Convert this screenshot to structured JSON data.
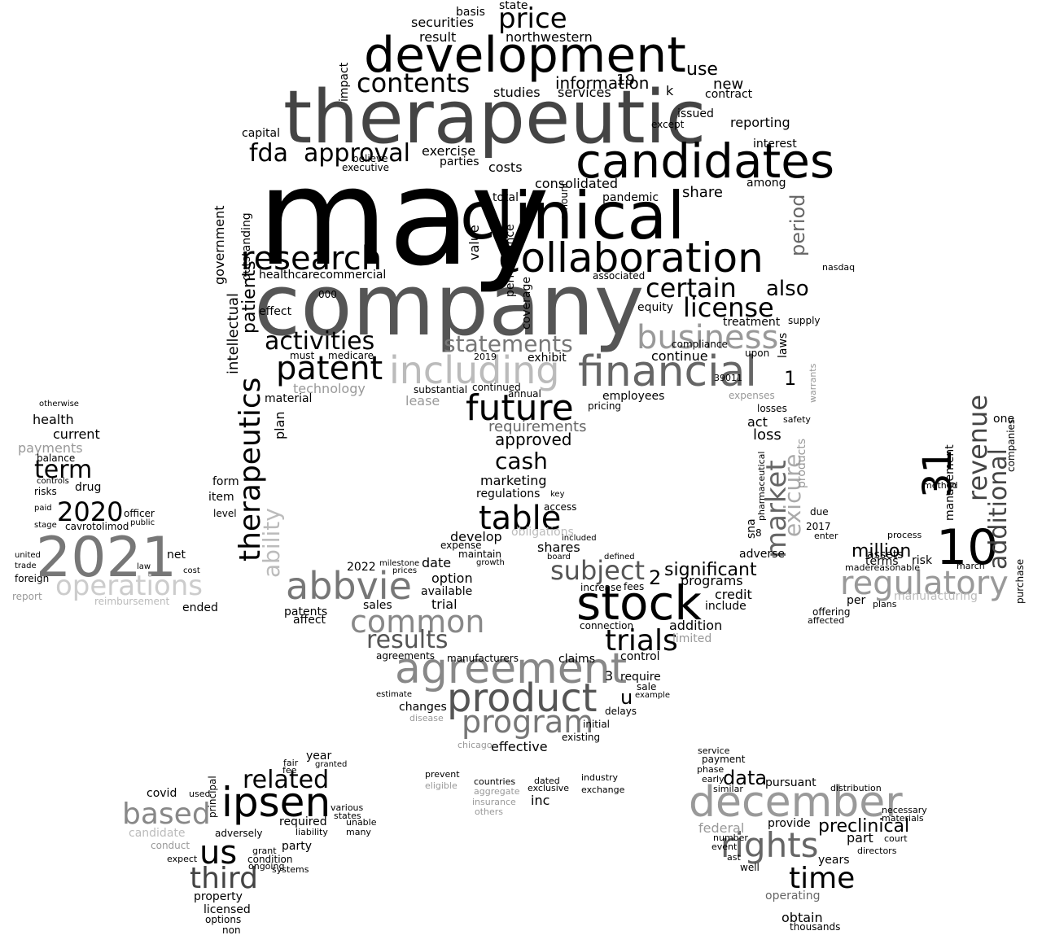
{
  "words": [
    {
      "text": "may",
      "tone": "#000000"
    },
    {
      "text": "company",
      "tone": "#555555"
    },
    {
      "text": "therapeutic",
      "tone": "#444444"
    },
    {
      "text": "clinical",
      "tone": "#000000"
    },
    {
      "text": "development",
      "tone": "#000000"
    },
    {
      "text": "candidates",
      "tone": "#000000"
    },
    {
      "text": "collaboration",
      "tone": "#000000"
    },
    {
      "text": "agreement",
      "tone": "#888888"
    },
    {
      "text": "stock",
      "tone": "#000000"
    },
    {
      "text": "product",
      "tone": "#555555"
    },
    {
      "text": "financial",
      "tone": "#666666"
    },
    {
      "text": "including",
      "tone": "#bbbbbb"
    },
    {
      "text": "december",
      "tone": "#999999"
    },
    {
      "text": "2021",
      "tone": "#777777"
    },
    {
      "text": "ipsen",
      "tone": "#000000"
    },
    {
      "text": "abbvie",
      "tone": "#777777"
    },
    {
      "text": "10",
      "tone": "#000000"
    },
    {
      "text": "31",
      "tone": "#000000"
    },
    {
      "text": "regulatory",
      "tone": "#999999"
    },
    {
      "text": "research",
      "tone": "#000000"
    },
    {
      "text": "patent",
      "tone": "#000000"
    },
    {
      "text": "business",
      "tone": "#999999"
    },
    {
      "text": "therapeutics",
      "tone": "#000000"
    },
    {
      "text": "program",
      "tone": "#777777"
    },
    {
      "text": "common",
      "tone": "#888888"
    },
    {
      "text": "future",
      "tone": "#000000"
    },
    {
      "text": "rights",
      "tone": "#666666"
    },
    {
      "text": "time",
      "tone": "#000000"
    },
    {
      "text": "table",
      "tone": "#000000"
    },
    {
      "text": "trials",
      "tone": "#000000"
    },
    {
      "text": "third",
      "tone": "#444444"
    },
    {
      "text": "based",
      "tone": "#888888"
    },
    {
      "text": "us",
      "tone": "#000000"
    },
    {
      "text": "subject",
      "tone": "#555555"
    },
    {
      "text": "price",
      "tone": "#000000"
    },
    {
      "text": "contents",
      "tone": "#000000"
    },
    {
      "text": "approval",
      "tone": "#000000"
    },
    {
      "text": "fda",
      "tone": "#000000"
    },
    {
      "text": "certain",
      "tone": "#000000"
    },
    {
      "text": "license",
      "tone": "#000000"
    },
    {
      "text": "statements",
      "tone": "#777777"
    },
    {
      "text": "activities",
      "tone": "#000000"
    },
    {
      "text": "results",
      "tone": "#555555"
    },
    {
      "text": "operations",
      "tone": "#cccccc"
    },
    {
      "text": "market",
      "tone": "#666666"
    },
    {
      "text": "revenue",
      "tone": "#444444"
    },
    {
      "text": "additional",
      "tone": "#444444"
    },
    {
      "text": "cash",
      "tone": "#000000"
    },
    {
      "text": "term",
      "tone": "#000000"
    },
    {
      "text": "2020",
      "tone": "#000000"
    },
    {
      "text": "related",
      "tone": "#000000"
    },
    {
      "text": "also",
      "tone": "#000000"
    },
    {
      "text": "information",
      "tone": "#000000"
    },
    {
      "text": "data",
      "tone": "#000000"
    },
    {
      "text": "million",
      "tone": "#000000"
    },
    {
      "text": "exicure",
      "tone": "#aaaaaa"
    },
    {
      "text": "ability",
      "tone": "#bbbbbb"
    },
    {
      "text": "period",
      "tone": "#666666"
    },
    {
      "text": "preclinical",
      "tone": "#000000"
    },
    {
      "text": "significant",
      "tone": "#000000"
    },
    {
      "text": "requirements",
      "tone": "#666666"
    },
    {
      "text": "approved",
      "tone": "#000000"
    },
    {
      "text": "use",
      "tone": "#000000"
    },
    {
      "text": "securities",
      "tone": "#000000"
    },
    {
      "text": "northwestern",
      "tone": "#000000"
    },
    {
      "text": "services",
      "tone": "#000000"
    },
    {
      "text": "new",
      "tone": "#000000"
    },
    {
      "text": "consolidated",
      "tone": "#000000"
    },
    {
      "text": "share",
      "tone": "#000000"
    },
    {
      "text": "exercise",
      "tone": "#000000"
    },
    {
      "text": "studies",
      "tone": "#000000"
    },
    {
      "text": "reporting",
      "tone": "#000000"
    },
    {
      "text": "patients",
      "tone": "#000000"
    },
    {
      "text": "government",
      "tone": "#000000"
    },
    {
      "text": "intellectual",
      "tone": "#000000"
    },
    {
      "text": "technology",
      "tone": "#999999"
    },
    {
      "text": "healthcarecommercial",
      "tone": "#000000"
    },
    {
      "text": "continue",
      "tone": "#000000"
    },
    {
      "text": "marketing",
      "tone": "#000000"
    },
    {
      "text": "regulations",
      "tone": "#000000"
    },
    {
      "text": "shares",
      "tone": "#000000"
    },
    {
      "text": "develop",
      "tone": "#000000"
    },
    {
      "text": "date",
      "tone": "#000000"
    },
    {
      "text": "option",
      "tone": "#000000"
    },
    {
      "text": "available",
      "tone": "#000000"
    },
    {
      "text": "trial",
      "tone": "#000000"
    },
    {
      "text": "sales",
      "tone": "#000000"
    },
    {
      "text": "patents",
      "tone": "#000000"
    },
    {
      "text": "affect",
      "tone": "#000000"
    },
    {
      "text": "programs",
      "tone": "#000000"
    },
    {
      "text": "credit",
      "tone": "#000000"
    },
    {
      "text": "include",
      "tone": "#000000"
    },
    {
      "text": "addition",
      "tone": "#000000"
    },
    {
      "text": "limited",
      "tone": "#999999"
    },
    {
      "text": "connection",
      "tone": "#000000"
    },
    {
      "text": "control",
      "tone": "#000000"
    },
    {
      "text": "require",
      "tone": "#000000"
    },
    {
      "text": "claims",
      "tone": "#000000"
    },
    {
      "text": "agreements",
      "tone": "#000000"
    },
    {
      "text": "manufacturers",
      "tone": "#000000"
    },
    {
      "text": "effective",
      "tone": "#000000"
    },
    {
      "text": "changes",
      "tone": "#000000"
    },
    {
      "text": "delays",
      "tone": "#000000"
    },
    {
      "text": "health",
      "tone": "#000000"
    },
    {
      "text": "current",
      "tone": "#000000"
    },
    {
      "text": "payments",
      "tone": "#999999"
    },
    {
      "text": "balance",
      "tone": "#000000"
    },
    {
      "text": "drug",
      "tone": "#000000"
    },
    {
      "text": "cavrotolimod",
      "tone": "#000000"
    },
    {
      "text": "net",
      "tone": "#000000"
    },
    {
      "text": "officer",
      "tone": "#000000"
    },
    {
      "text": "public",
      "tone": "#000000"
    },
    {
      "text": "reimbursement",
      "tone": "#bbbbbb"
    },
    {
      "text": "ended",
      "tone": "#000000"
    },
    {
      "text": "year",
      "tone": "#000000"
    },
    {
      "text": "covid",
      "tone": "#000000"
    },
    {
      "text": "candidate",
      "tone": "#bbbbbb"
    },
    {
      "text": "conduct",
      "tone": "#999999"
    },
    {
      "text": "adversely",
      "tone": "#000000"
    },
    {
      "text": "required",
      "tone": "#000000"
    },
    {
      "text": "party",
      "tone": "#000000"
    },
    {
      "text": "condition",
      "tone": "#000000"
    },
    {
      "text": "property",
      "tone": "#000000"
    },
    {
      "text": "licensed",
      "tone": "#000000"
    },
    {
      "text": "options",
      "tone": "#000000"
    },
    {
      "text": "payment",
      "tone": "#000000"
    },
    {
      "text": "pursuant",
      "tone": "#000000"
    },
    {
      "text": "federal",
      "tone": "#999999"
    },
    {
      "text": "provide",
      "tone": "#000000"
    },
    {
      "text": "part",
      "tone": "#000000"
    },
    {
      "text": "years",
      "tone": "#000000"
    },
    {
      "text": "operating",
      "tone": "#666666"
    },
    {
      "text": "obtain",
      "tone": "#000000"
    },
    {
      "text": "thousands",
      "tone": "#000000"
    },
    {
      "text": "distribution",
      "tone": "#000000"
    },
    {
      "text": "assets",
      "tone": "#000000"
    },
    {
      "text": "terms",
      "tone": "#000000"
    },
    {
      "text": "risk",
      "tone": "#000000"
    },
    {
      "text": "management",
      "tone": "#000000"
    },
    {
      "text": "manufacturing",
      "tone": "#bbbbbb"
    },
    {
      "text": "per",
      "tone": "#000000"
    },
    {
      "text": "process",
      "tone": "#000000"
    },
    {
      "text": "madereasonable",
      "tone": "#000000"
    },
    {
      "text": "march",
      "tone": "#000000"
    },
    {
      "text": "one",
      "tone": "#000000"
    },
    {
      "text": "companies",
      "tone": "#000000"
    },
    {
      "text": "method",
      "tone": "#000000"
    },
    {
      "text": "purchase",
      "tone": "#000000"
    },
    {
      "text": "plans",
      "tone": "#000000"
    },
    {
      "text": "affected",
      "tone": "#000000"
    },
    {
      "text": "offering",
      "tone": "#000000"
    },
    {
      "text": "loss",
      "tone": "#000000"
    },
    {
      "text": "act",
      "tone": "#000000"
    },
    {
      "text": "adverse",
      "tone": "#000000"
    },
    {
      "text": "losses",
      "tone": "#000000"
    },
    {
      "text": "safety",
      "tone": "#000000"
    },
    {
      "text": "expenses",
      "tone": "#999999"
    },
    {
      "text": "laws",
      "tone": "#000000"
    },
    {
      "text": "supply",
      "tone": "#000000"
    },
    {
      "text": "treatment",
      "tone": "#000000"
    },
    {
      "text": "upon",
      "tone": "#000000"
    },
    {
      "text": "compliance",
      "tone": "#000000"
    },
    {
      "text": "equity",
      "tone": "#000000"
    },
    {
      "text": "associated",
      "tone": "#000000"
    },
    {
      "text": "nasdaq",
      "tone": "#000000"
    },
    {
      "text": "pandemic",
      "tone": "#000000"
    },
    {
      "text": "interest",
      "tone": "#000000"
    },
    {
      "text": "among",
      "tone": "#000000"
    },
    {
      "text": "issued",
      "tone": "#000000"
    },
    {
      "text": "except",
      "tone": "#000000"
    },
    {
      "text": "contract",
      "tone": "#000000"
    },
    {
      "text": "capital",
      "tone": "#000000"
    },
    {
      "text": "outstanding",
      "tone": "#000000"
    },
    {
      "text": "effect",
      "tone": "#000000"
    },
    {
      "text": "must",
      "tone": "#000000"
    },
    {
      "text": "medicare",
      "tone": "#000000"
    },
    {
      "text": "material",
      "tone": "#000000"
    },
    {
      "text": "plan",
      "tone": "#000000"
    },
    {
      "text": "lease",
      "tone": "#999999"
    },
    {
      "text": "exhibit",
      "tone": "#000000"
    },
    {
      "text": "annual",
      "tone": "#000000"
    },
    {
      "text": "employees",
      "tone": "#000000"
    },
    {
      "text": "pricing",
      "tone": "#000000"
    },
    {
      "text": "continued",
      "tone": "#000000"
    },
    {
      "text": "substantial",
      "tone": "#000000"
    },
    {
      "text": "performance",
      "tone": "#000000"
    },
    {
      "text": "value",
      "tone": "#000000"
    },
    {
      "text": "coverage",
      "tone": "#000000"
    },
    {
      "text": "total",
      "tone": "#000000"
    },
    {
      "text": "amount",
      "tone": "#000000"
    },
    {
      "text": "costs",
      "tone": "#000000"
    },
    {
      "text": "parties",
      "tone": "#000000"
    },
    {
      "text": "result",
      "tone": "#000000"
    },
    {
      "text": "basis",
      "tone": "#000000"
    },
    {
      "text": "state",
      "tone": "#000000"
    },
    {
      "text": "impact",
      "tone": "#000000"
    },
    {
      "text": "believe",
      "tone": "#000000"
    },
    {
      "text": "executive",
      "tone": "#000000"
    },
    {
      "text": "form",
      "tone": "#000000"
    },
    {
      "text": "item",
      "tone": "#000000"
    },
    {
      "text": "level",
      "tone": "#000000"
    },
    {
      "text": "risks",
      "tone": "#000000"
    },
    {
      "text": "paid",
      "tone": "#000000"
    },
    {
      "text": "controls",
      "tone": "#000000"
    },
    {
      "text": "stage",
      "tone": "#000000"
    },
    {
      "text": "foreign",
      "tone": "#000000"
    },
    {
      "text": "united",
      "tone": "#000000"
    },
    {
      "text": "report",
      "tone": "#999999"
    },
    {
      "text": "trade",
      "tone": "#000000"
    },
    {
      "text": "law",
      "tone": "#000000"
    },
    {
      "text": "cost",
      "tone": "#000000"
    },
    {
      "text": "2022",
      "tone": "#000000"
    },
    {
      "text": "milestone",
      "tone": "#000000"
    },
    {
      "text": "prices",
      "tone": "#000000"
    },
    {
      "text": "expense",
      "tone": "#000000"
    },
    {
      "text": "maintain",
      "tone": "#000000"
    },
    {
      "text": "growth",
      "tone": "#000000"
    },
    {
      "text": "obligations",
      "tone": "#bbbbbb"
    },
    {
      "text": "access",
      "tone": "#000000"
    },
    {
      "text": "key",
      "tone": "#000000"
    },
    {
      "text": "board",
      "tone": "#000000"
    },
    {
      "text": "included",
      "tone": "#000000"
    },
    {
      "text": "defined",
      "tone": "#000000"
    },
    {
      "text": "increase",
      "tone": "#000000"
    },
    {
      "text": "fees",
      "tone": "#000000"
    },
    {
      "text": "sale",
      "tone": "#000000"
    },
    {
      "text": "example",
      "tone": "#000000"
    },
    {
      "text": "initial",
      "tone": "#000000"
    },
    {
      "text": "existing",
      "tone": "#000000"
    },
    {
      "text": "estimate",
      "tone": "#000000"
    },
    {
      "text": "disease",
      "tone": "#999999"
    },
    {
      "text": "chicago",
      "tone": "#999999"
    },
    {
      "text": "prevent",
      "tone": "#000000"
    },
    {
      "text": "eligible",
      "tone": "#999999"
    },
    {
      "text": "aggregate",
      "tone": "#999999"
    },
    {
      "text": "insurance",
      "tone": "#999999"
    },
    {
      "text": "others",
      "tone": "#999999"
    },
    {
      "text": "countries",
      "tone": "#000000"
    },
    {
      "text": "exclusive",
      "tone": "#000000"
    },
    {
      "text": "dated",
      "tone": "#000000"
    },
    {
      "text": "inc",
      "tone": "#000000"
    },
    {
      "text": "industry",
      "tone": "#000000"
    },
    {
      "text": "exchange",
      "tone": "#000000"
    },
    {
      "text": "service",
      "tone": "#000000"
    },
    {
      "text": "phase",
      "tone": "#000000"
    },
    {
      "text": "early",
      "tone": "#000000"
    },
    {
      "text": "similar",
      "tone": "#000000"
    },
    {
      "text": "number",
      "tone": "#000000"
    },
    {
      "text": "event",
      "tone": "#000000"
    },
    {
      "text": "well",
      "tone": "#000000"
    },
    {
      "text": "ast",
      "tone": "#000000"
    },
    {
      "text": "directors",
      "tone": "#000000"
    },
    {
      "text": "court",
      "tone": "#000000"
    },
    {
      "text": "necessary",
      "tone": "#000000"
    },
    {
      "text": "materials",
      "tone": "#000000"
    },
    {
      "text": "granted",
      "tone": "#000000"
    },
    {
      "text": "various",
      "tone": "#000000"
    },
    {
      "text": "states",
      "tone": "#000000"
    },
    {
      "text": "unable",
      "tone": "#000000"
    },
    {
      "text": "many",
      "tone": "#000000"
    },
    {
      "text": "liability",
      "tone": "#000000"
    },
    {
      "text": "grant",
      "tone": "#000000"
    },
    {
      "text": "ongoing",
      "tone": "#000000"
    },
    {
      "text": "systems",
      "tone": "#000000"
    },
    {
      "text": "non",
      "tone": "#000000"
    },
    {
      "text": "principal",
      "tone": "#000000"
    },
    {
      "text": "used",
      "tone": "#000000"
    },
    {
      "text": "expect",
      "tone": "#000000"
    },
    {
      "text": "fair",
      "tone": "#000000"
    },
    {
      "text": "fee",
      "tone": "#000000"
    },
    {
      "text": "otherwise",
      "tone": "#000000"
    },
    {
      "text": "sna",
      "tone": "#000000"
    },
    {
      "text": "pharmaceutical",
      "tone": "#000000"
    },
    {
      "text": "products",
      "tone": "#999999"
    },
    {
      "text": "due",
      "tone": "#000000"
    },
    {
      "text": "2017",
      "tone": "#000000"
    },
    {
      "text": "enter",
      "tone": "#000000"
    },
    {
      "text": "warrants",
      "tone": "#999999"
    },
    {
      "text": "1",
      "tone": "#000000"
    },
    {
      "text": "2",
      "tone": "#000000"
    },
    {
      "text": "3",
      "tone": "#000000"
    },
    {
      "text": "u",
      "tone": "#000000"
    },
    {
      "text": "19",
      "tone": "#000000"
    },
    {
      "text": "k",
      "tone": "#000000"
    },
    {
      "text": "000",
      "tone": "#000000"
    },
    {
      "text": "2019",
      "tone": "#000000"
    },
    {
      "text": "39011",
      "tone": "#000000"
    },
    {
      "text": "8",
      "tone": "#000000"
    }
  ]
}
